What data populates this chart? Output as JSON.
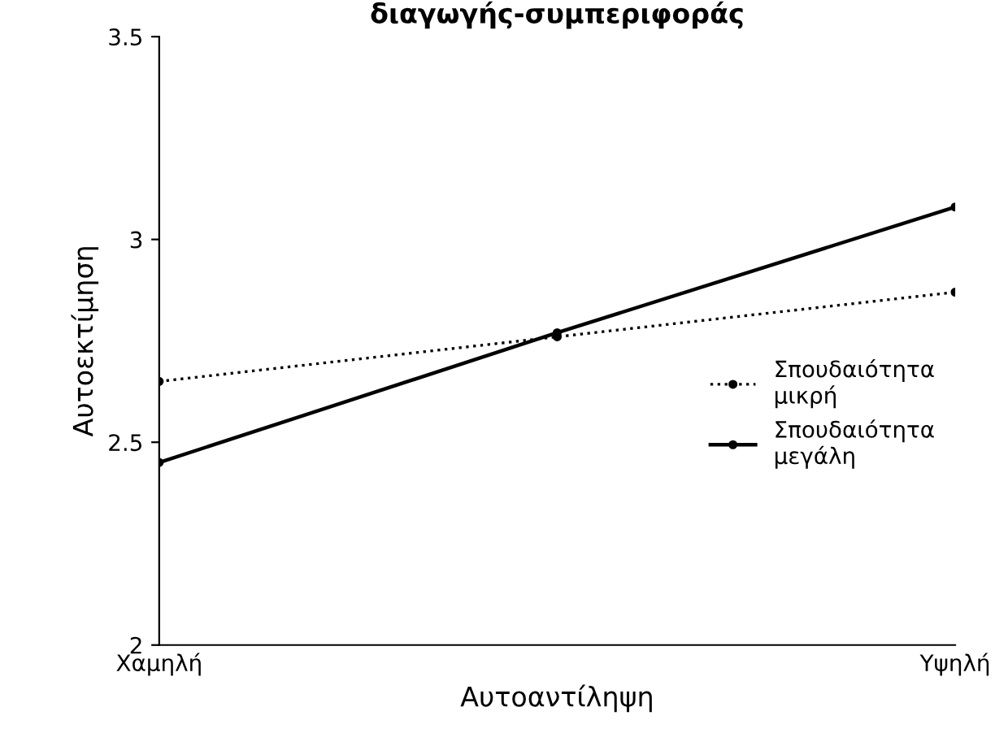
{
  "chart_data": {
    "type": "line",
    "title": "διαγωγής-συμπεριφοράς",
    "xlabel": "Αυτοαντίληψη",
    "ylabel": "Αυτοεκτίμηση",
    "categories": [
      "Χαμηλή",
      null,
      "Υψηλή"
    ],
    "series": [
      {
        "name": "Σπουδαιότητα\nμικρή",
        "color": "#000000",
        "values": [
          2.65,
          2.76,
          2.87
        ],
        "line_style": "dotted"
      },
      {
        "name": "Σπουδαιότητα\nμεγάλη",
        "color": "#000000",
        "values": [
          2.45,
          2.77,
          3.08
        ],
        "line_style": "solid"
      }
    ],
    "ylim": [
      2,
      3.5
    ],
    "yticks": [
      2,
      2.5,
      3,
      3.5
    ],
    "grid": false,
    "legend": "right",
    "marker": "circle"
  }
}
